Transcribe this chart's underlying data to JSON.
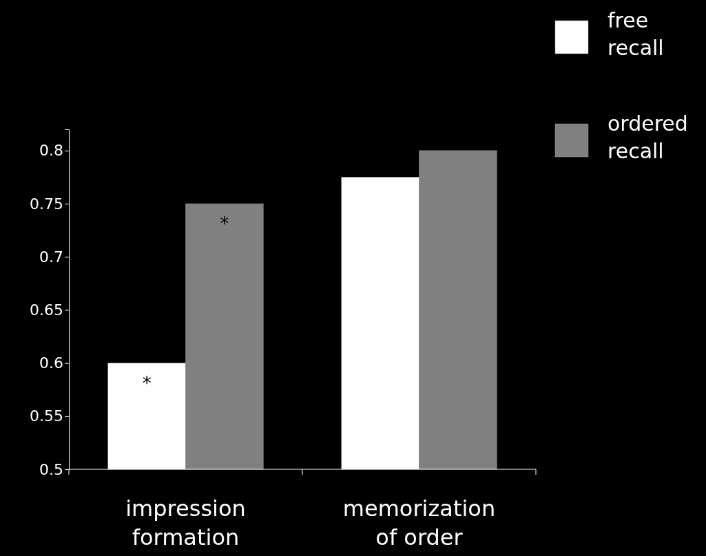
{
  "chart_data": {
    "type": "bar",
    "categories": [
      "impression formation",
      "memorization of order"
    ],
    "series": [
      {
        "name": "free recall",
        "color": "#ffffff",
        "values": [
          0.6,
          0.775
        ]
      },
      {
        "name": "ordered recall",
        "color": "#808080",
        "values": [
          0.75,
          0.8
        ]
      }
    ],
    "ylim": [
      0.5,
      0.82
    ],
    "yticks": [
      0.5,
      0.55,
      0.6,
      0.65,
      0.7,
      0.75,
      0.8
    ],
    "grid": false,
    "legend": "top right",
    "annotations": [
      {
        "text": "*",
        "x": "impression formation",
        "y": 0.58
      },
      {
        "text": "*",
        "x": "impression formation",
        "y": 0.73
      }
    ]
  }
}
